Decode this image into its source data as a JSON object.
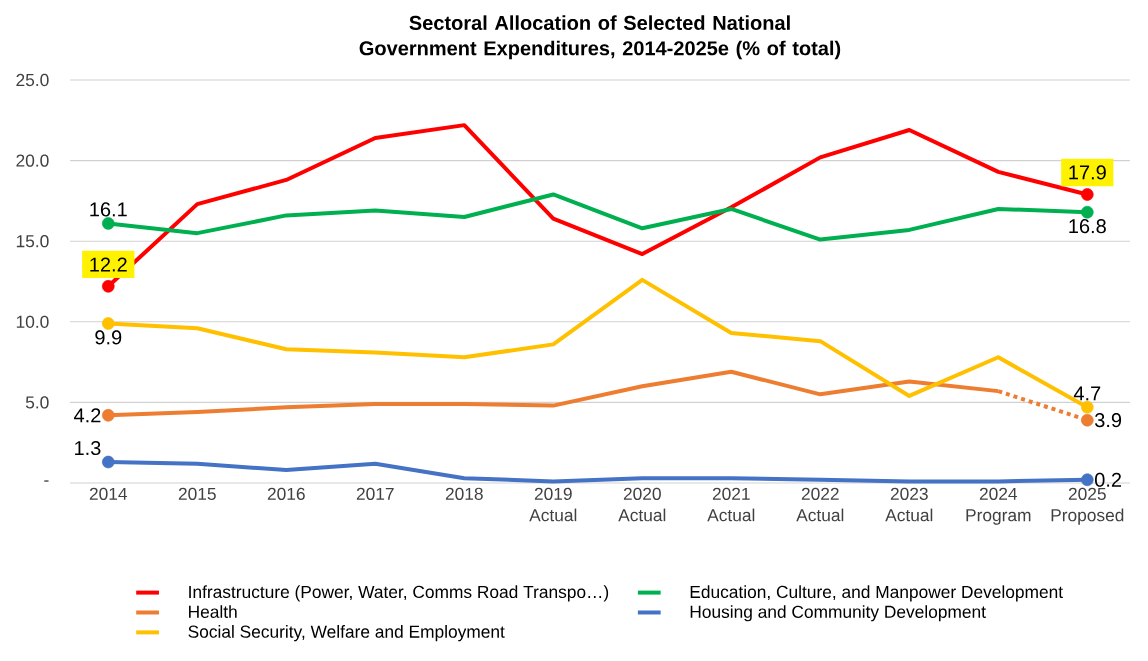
{
  "chart_data": {
    "type": "line",
    "title": "Sectoral Allocation of Selected National Government Expenditures, 2014-2025e (% of total)",
    "categories": [
      "2014",
      "2015",
      "2016",
      "2017",
      "2018",
      "2019 Actual",
      "2020 Actual",
      "2021 Actual",
      "2022 Actual",
      "2023 Actual",
      "2024 Program",
      "2025 Proposed"
    ],
    "series": [
      {
        "name": "Infrastructure (Power, Water, Comms Road Transpo…)",
        "color": "#ff0000",
        "values": [
          12.2,
          17.3,
          18.8,
          21.4,
          22.2,
          16.4,
          14.2,
          17.1,
          20.2,
          21.9,
          19.3,
          17.9
        ],
        "value_labels": [
          "12.2",
          null,
          null,
          null,
          null,
          null,
          null,
          null,
          null,
          null,
          null,
          "17.9"
        ]
      },
      {
        "name": "Education, Culture, and Manpower Development",
        "color": "#00b050",
        "values": [
          16.1,
          15.5,
          16.6,
          16.9,
          16.5,
          17.9,
          15.8,
          17.0,
          15.1,
          15.7,
          17.0,
          16.8
        ],
        "value_labels": [
          "16.1",
          null,
          null,
          null,
          null,
          null,
          null,
          null,
          null,
          null,
          null,
          "16.8"
        ]
      },
      {
        "name": "Health",
        "color": "#ed7d31",
        "values": [
          4.2,
          4.4,
          4.7,
          4.9,
          4.9,
          4.8,
          6.0,
          6.9,
          5.5,
          6.3,
          5.7,
          null
        ],
        "value_labels": [
          "4.2",
          null,
          null,
          null,
          null,
          null,
          null,
          null,
          null,
          null,
          null,
          null
        ]
      },
      {
        "color": "#ed7d31",
        "line_style": "dashed",
        "values": [
          null,
          null,
          null,
          null,
          null,
          null,
          null,
          null,
          null,
          null,
          5.7,
          3.9
        ],
        "value_labels": [
          null,
          null,
          null,
          null,
          null,
          null,
          null,
          null,
          null,
          null,
          null,
          "3.9"
        ]
      },
      {
        "name": "Housing and Community Development",
        "color": "#4472c4",
        "values": [
          1.3,
          1.2,
          0.8,
          1.2,
          0.3,
          0.1,
          0.3,
          0.3,
          0.2,
          0.1,
          0.1,
          0.2
        ],
        "value_labels": [
          "1.3",
          null,
          null,
          null,
          null,
          null,
          null,
          null,
          null,
          null,
          null,
          "0.2"
        ]
      },
      {
        "name": "Social Security, Welfare and Employment",
        "color": "#ffc000",
        "values": [
          9.9,
          9.6,
          8.3,
          8.1,
          7.8,
          8.6,
          12.6,
          9.3,
          8.8,
          5.4,
          7.8,
          4.7
        ],
        "value_labels": [
          "9.9",
          null,
          null,
          null,
          null,
          null,
          null,
          null,
          null,
          null,
          null,
          "4.7"
        ]
      }
    ],
    "ylim": [
      0,
      25
    ],
    "yticks": [
      {
        "value": 0,
        "label": "-"
      },
      {
        "value": 5,
        "label": "5.0"
      },
      {
        "value": 10,
        "label": "10.0"
      },
      {
        "value": 15,
        "label": "15.0"
      },
      {
        "value": 20,
        "label": "20.0"
      },
      {
        "value": 25,
        "label": "25.0"
      }
    ],
    "grid": "y",
    "legend": "bottom",
    "line_style": "solid"
  }
}
